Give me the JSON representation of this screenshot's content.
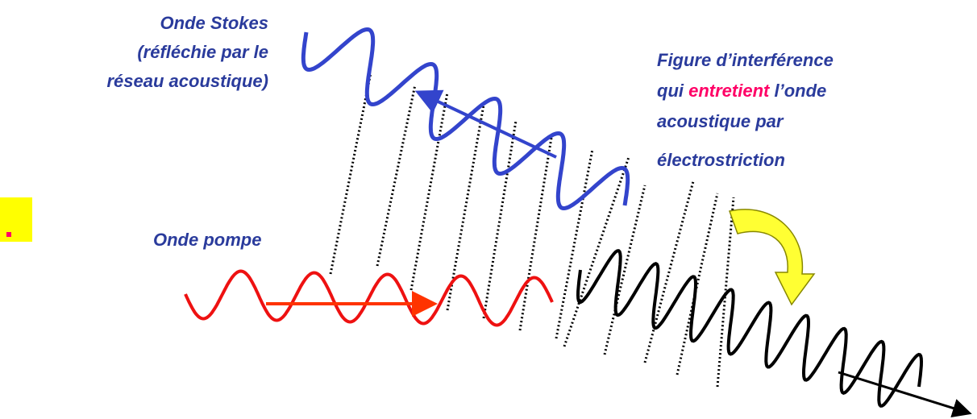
{
  "stokes_label": {
    "lines": [
      "Onde Stokes",
      "(réfléchie par le",
      "réseau acoustique)"
    ]
  },
  "interference_label": {
    "line1": "Figure d’interférence",
    "line2_start": "qui ",
    "line2_highlight": "entretient",
    "line2_end": " l’onde",
    "line3": "acoustique par",
    "line4": "électrostriction"
  },
  "pump_label": "Onde pompe"
}
